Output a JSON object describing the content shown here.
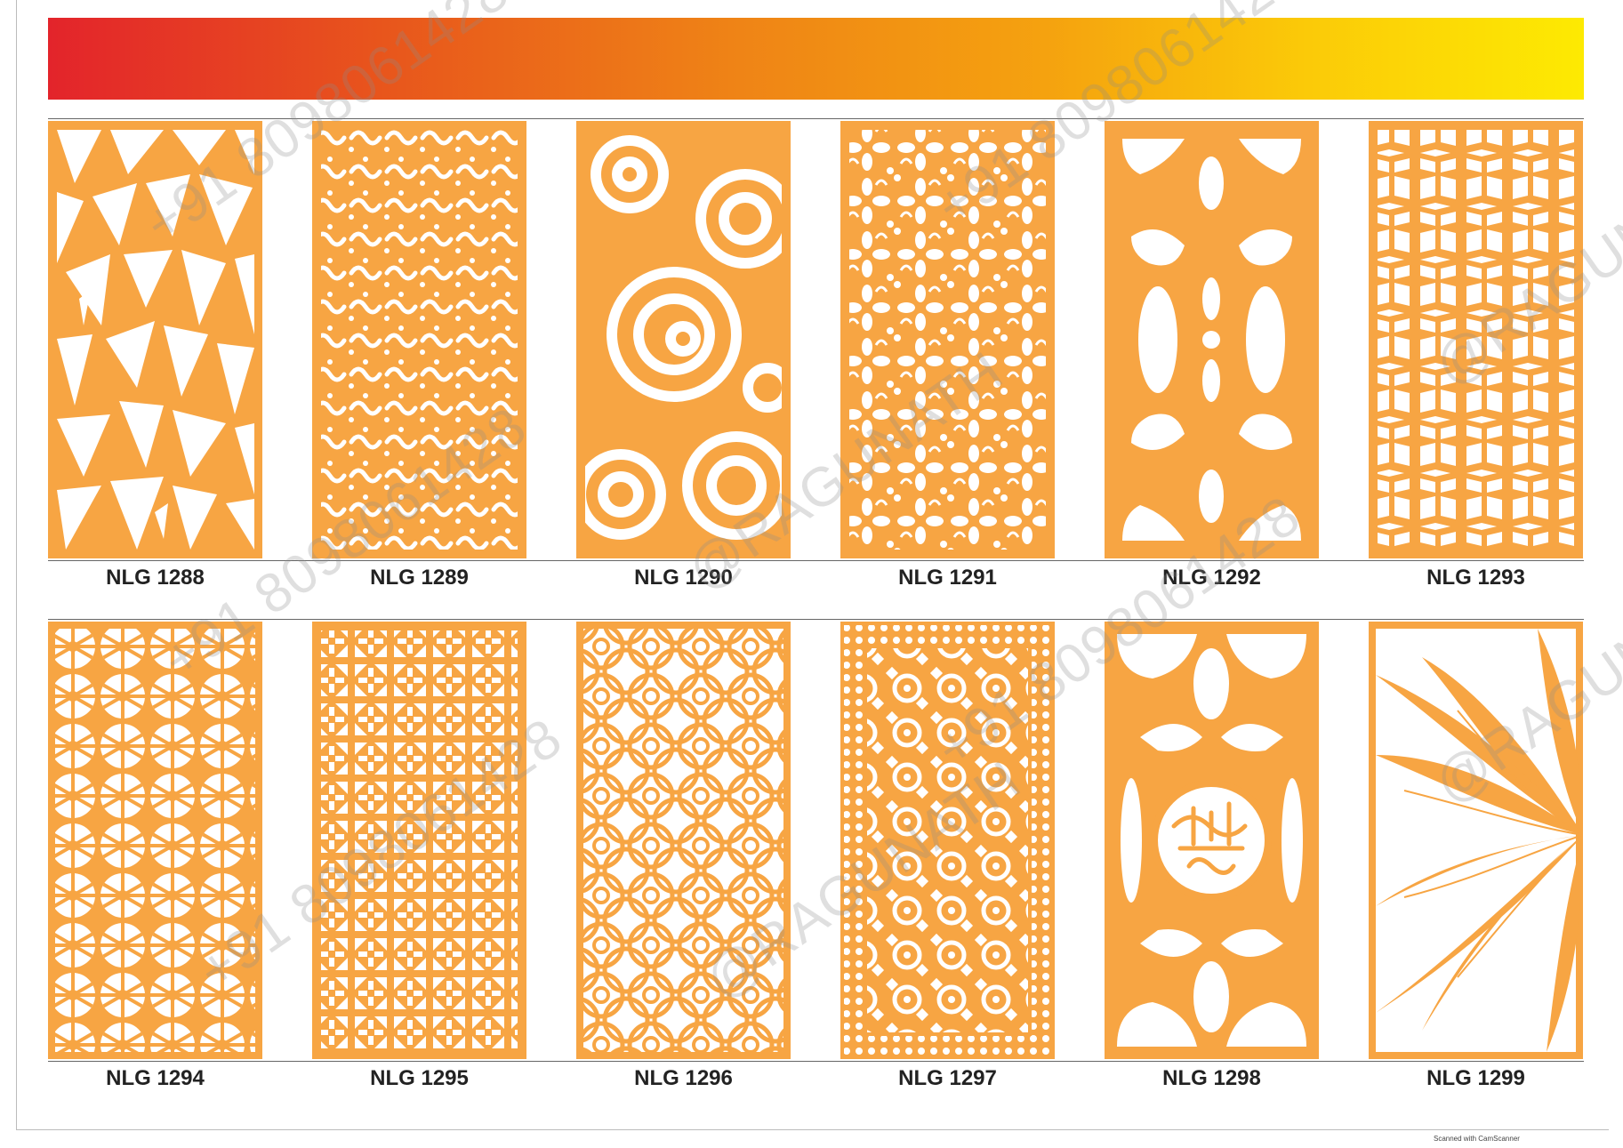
{
  "banner": {
    "colors": [
      "#e3242b",
      "#ef8416",
      "#fdea02"
    ]
  },
  "panel_color": "#f7a543",
  "rows": [
    {
      "labels": [
        "NLG 1288",
        "NLG 1289",
        "NLG 1290",
        "NLG 1291",
        "NLG 1292",
        "NLG 1293"
      ]
    },
    {
      "labels": [
        "NLG 1294",
        "NLG 1295",
        "NLG 1296",
        "NLG 1297",
        "NLG 1298",
        "NLG 1299"
      ]
    }
  ],
  "watermark": {
    "name": "@RAGUNATH",
    "phone": "+91 8098061428"
  },
  "footer": {
    "scanner": "Scanned with CamScanner"
  }
}
